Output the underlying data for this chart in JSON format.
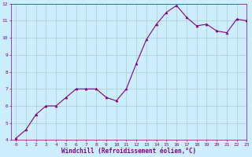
{
  "x": [
    0,
    1,
    2,
    3,
    4,
    5,
    6,
    7,
    8,
    9,
    10,
    11,
    12,
    13,
    14,
    15,
    16,
    17,
    18,
    19,
    20,
    21,
    22,
    23
  ],
  "y": [
    4.1,
    4.6,
    5.5,
    6.0,
    6.0,
    6.5,
    7.0,
    7.0,
    7.0,
    6.5,
    6.3,
    7.0,
    8.5,
    9.9,
    10.8,
    11.5,
    11.9,
    11.2,
    10.7,
    10.8,
    10.4,
    10.3,
    11.1,
    11.0
  ],
  "line_color": "#800080",
  "marker": "^",
  "marker_size": 2.0,
  "bg_color": "#cceeff",
  "grid_color": "#aacccc",
  "xlabel": "Windchill (Refroidissement éolien,°C)",
  "xlabel_color": "#800080",
  "tick_color": "#800080",
  "label_fontsize": 4.5,
  "xlabel_fontsize": 5.5,
  "ylim": [
    4,
    12
  ],
  "xlim": [
    -0.5,
    23
  ],
  "yticks": [
    4,
    5,
    6,
    7,
    8,
    9,
    10,
    11,
    12
  ],
  "xticks": [
    0,
    1,
    2,
    3,
    4,
    5,
    6,
    7,
    8,
    9,
    10,
    11,
    12,
    13,
    14,
    15,
    16,
    17,
    18,
    19,
    20,
    21,
    22,
    23
  ]
}
